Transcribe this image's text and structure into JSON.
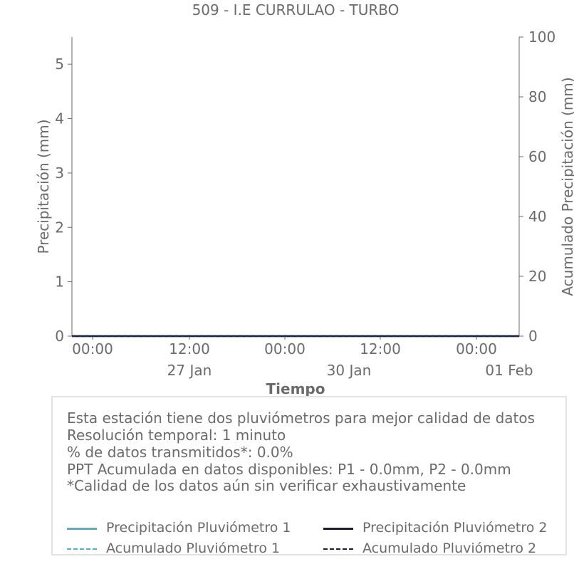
{
  "chart_data": {
    "type": "line",
    "title": "509 - I.E CURRULAO - TURBO",
    "xlabel": "Tiempo",
    "ylabel_left": "Precipitación (mm)",
    "ylabel_right": "Acumulado Precipitación (mm)",
    "ylim_left": [
      0,
      5.5
    ],
    "ylim_right": [
      0,
      100
    ],
    "yticks_left": [
      "0",
      "1",
      "2",
      "3",
      "4",
      "5"
    ],
    "yticks_right": [
      "0",
      "20",
      "40",
      "60",
      "80",
      "100"
    ],
    "xtick_labels": [
      "00:00",
      "12:00",
      "00:00",
      "12:00",
      "00:00"
    ],
    "xtick_date_labels": [
      "27 Jan",
      "30 Jan",
      "01 Feb"
    ],
    "grid": false,
    "series": [
      {
        "name": "Precipitación Pluviómetro 1",
        "axis": "left",
        "style": "solid",
        "color": "#4fb3c8",
        "values": [
          0,
          0
        ]
      },
      {
        "name": "Precipitación Pluviómetro 2",
        "axis": "left",
        "style": "solid",
        "color": "#1c1c3a",
        "values": [
          0,
          0
        ]
      },
      {
        "name": "Acumulado Pluviómetro 1",
        "axis": "right",
        "style": "dashed",
        "color": "#4fb3c8",
        "values": [
          0,
          0
        ]
      },
      {
        "name": "Acumulado Pluviómetro 2",
        "axis": "right",
        "style": "dashed",
        "color": "#1c1c3a",
        "values": [
          0,
          0
        ]
      }
    ]
  },
  "info": {
    "line1": "Esta estación tiene dos pluviómetros para mejor calidad de datos",
    "line2": "Resolución temporal: 1 minuto",
    "line3": "% de datos transmitidos*: 0.0%",
    "line4": "PPT Acumulada en datos disponibles: P1 - 0.0mm, P2 - 0.0mm",
    "line5": "*Calidad de los datos aún sin verificar exhaustivamente"
  },
  "legend": {
    "p1": "Precipitación Pluviómetro 1",
    "p2": "Precipitación Pluviómetro 2",
    "a1": "Acumulado Pluviómetro 1",
    "a2": "Acumulado Pluviómetro 2",
    "color1": "#4fb3c8",
    "color2": "#1c1c3a"
  }
}
